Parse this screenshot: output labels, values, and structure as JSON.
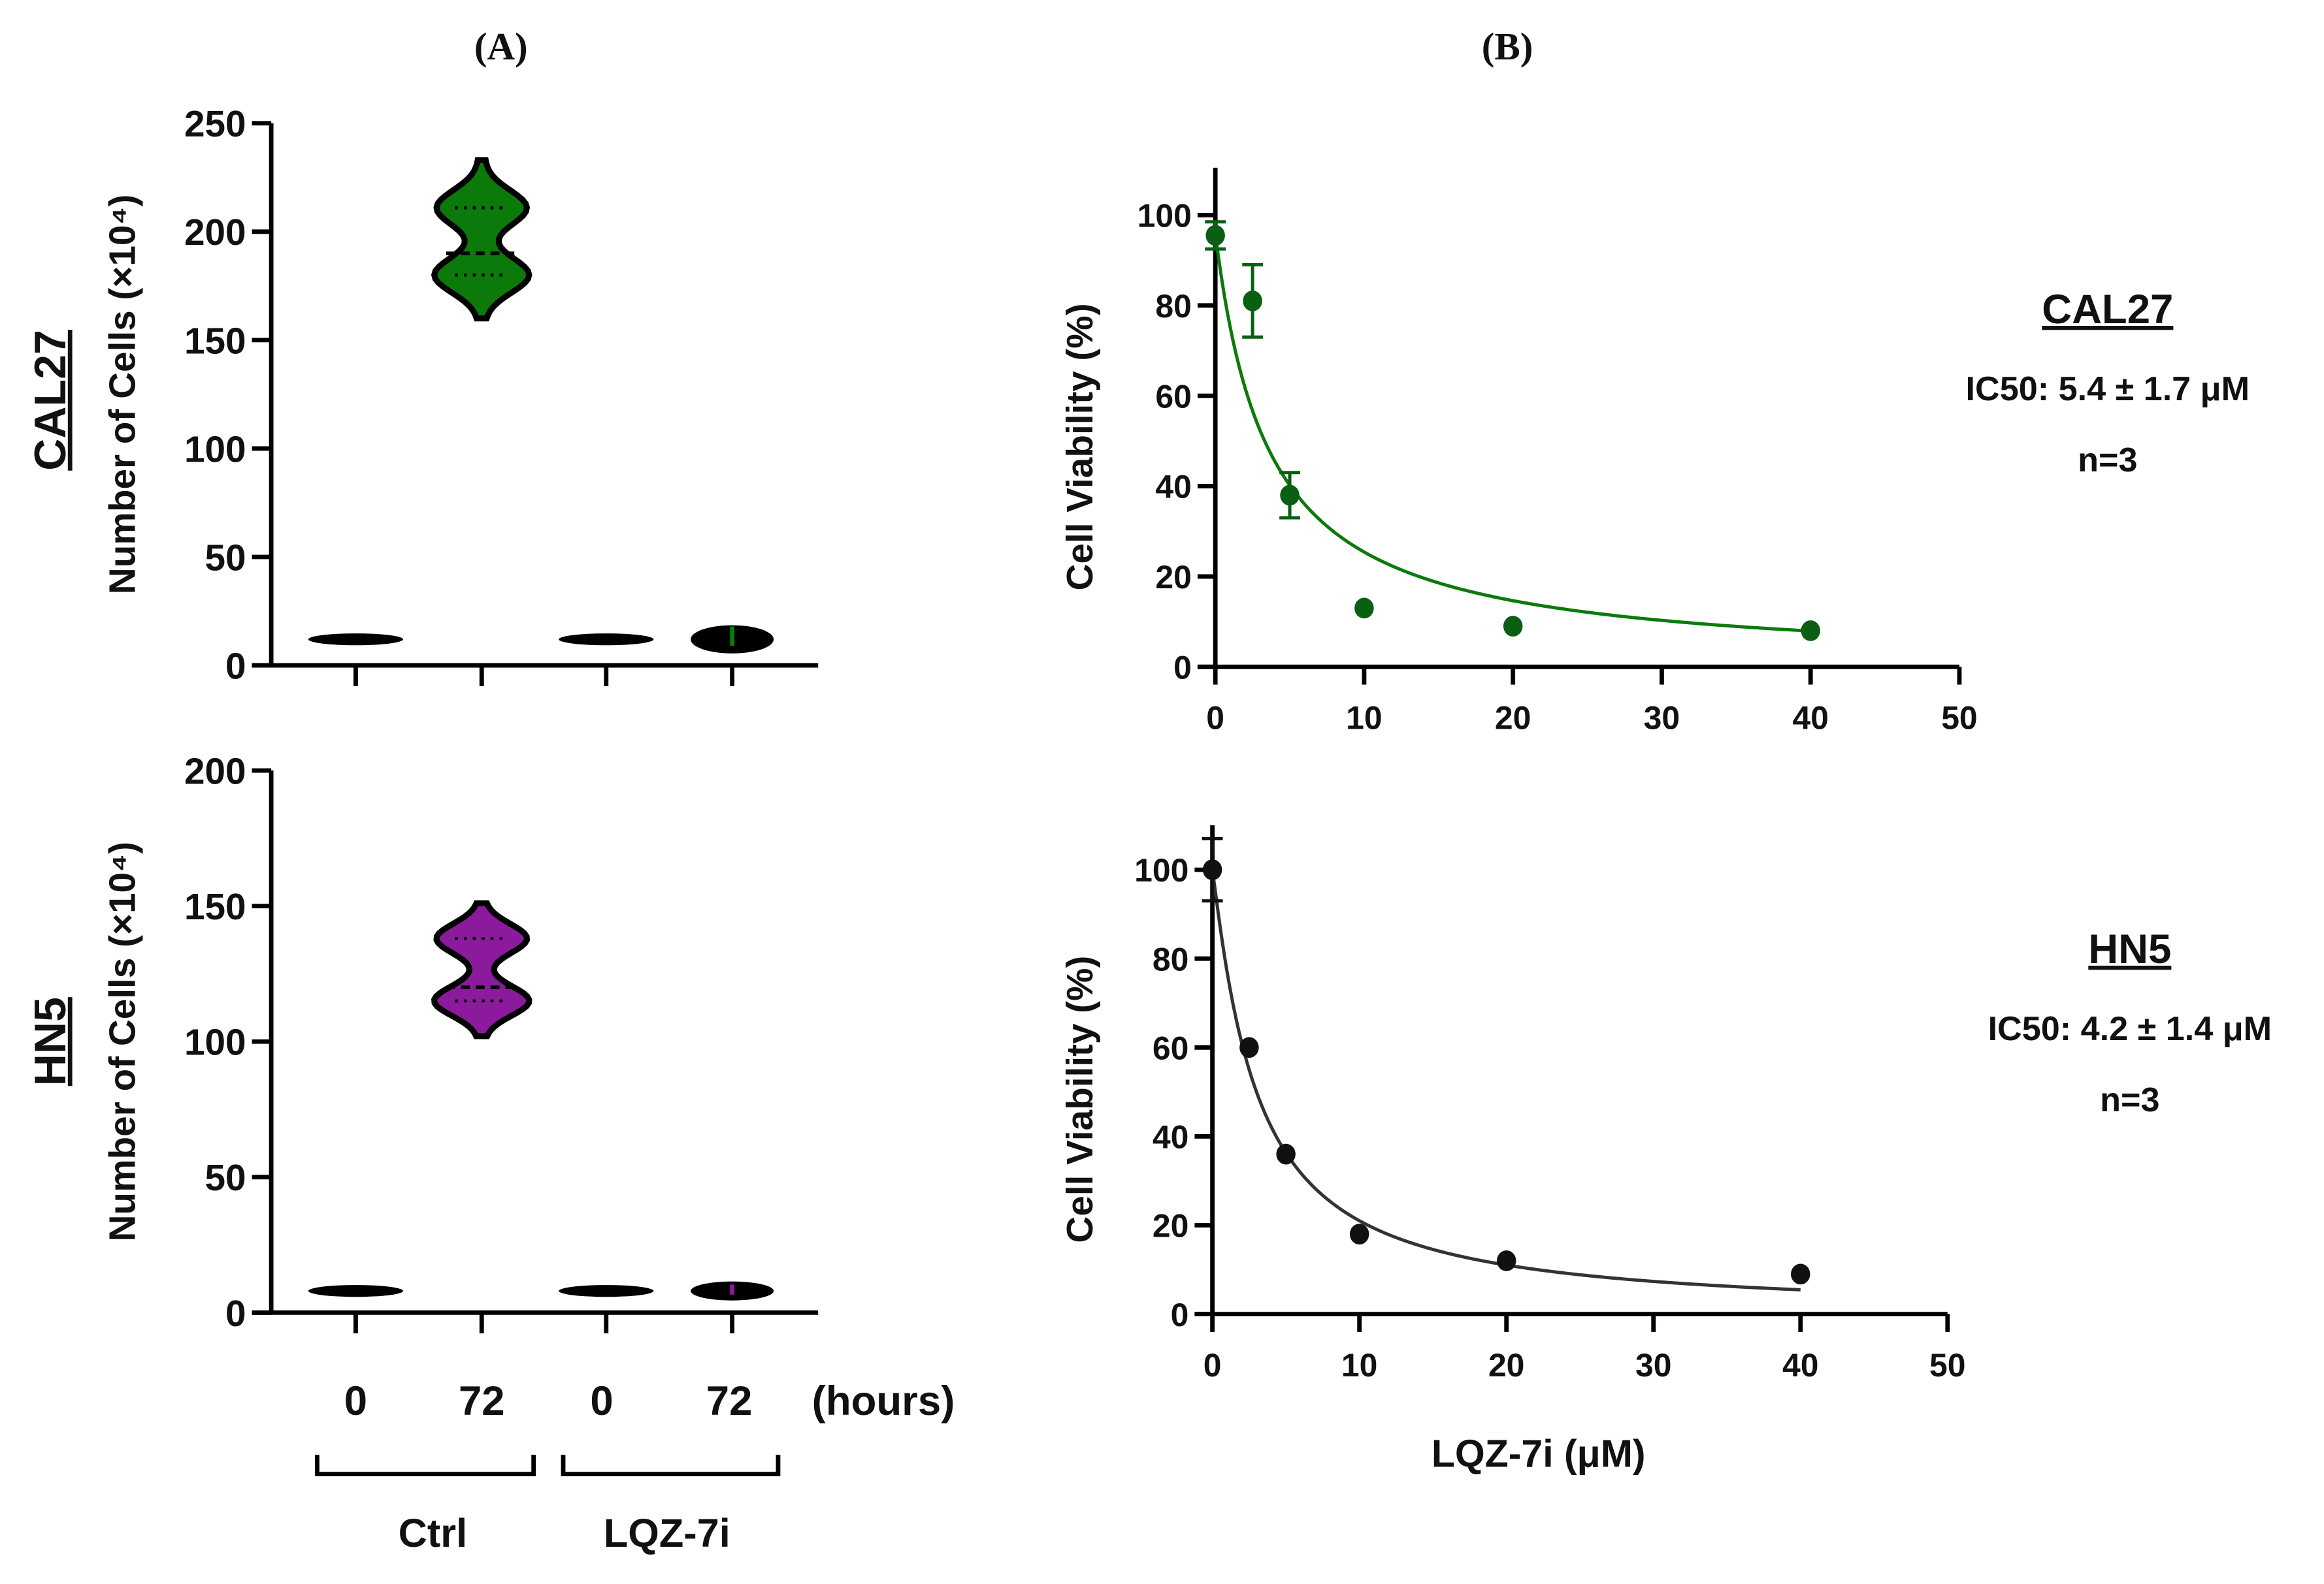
{
  "panel_labels": {
    "a": "(A)",
    "b": "(B)"
  },
  "colors": {
    "cal27": "#0b7a0b",
    "hn5": "#8c1a9c",
    "dark_green": "#0a5f12",
    "axis": "#000000"
  },
  "chart_data": [
    {
      "type": "violin",
      "id": "cal27-count",
      "row_label": "CAL27",
      "ylabel": "Number of Cells (×10⁴)",
      "ylim": [
        0,
        250
      ],
      "yticks": [
        0,
        50,
        100,
        150,
        200,
        250
      ],
      "groups": [
        {
          "group": "Ctrl",
          "time": "0",
          "min": 11,
          "max": 13,
          "median": 12
        },
        {
          "group": "Ctrl",
          "time": "72",
          "min": 160,
          "max": 233,
          "median": 190,
          "q1": 180,
          "q3": 211
        },
        {
          "group": "LQZ-7i",
          "time": "0",
          "min": 11,
          "max": 13,
          "median": 12
        },
        {
          "group": "LQZ-7i",
          "time": "72",
          "min": 7,
          "max": 20,
          "median": 12
        }
      ]
    },
    {
      "type": "violin",
      "id": "hn5-count",
      "row_label": "HN5",
      "ylabel": "Number of Cells (×10⁴)",
      "ylim": [
        0,
        200
      ],
      "yticks": [
        0,
        50,
        100,
        150,
        200
      ],
      "groups": [
        {
          "group": "Ctrl",
          "time": "0",
          "min": 7,
          "max": 9,
          "median": 8
        },
        {
          "group": "Ctrl",
          "time": "72",
          "min": 102,
          "max": 151,
          "median": 120,
          "q1": 115,
          "q3": 138
        },
        {
          "group": "LQZ-7i",
          "time": "0",
          "min": 7,
          "max": 9,
          "median": 8
        },
        {
          "group": "LQZ-7i",
          "time": "72",
          "min": 5,
          "max": 12,
          "median": 8
        }
      ]
    },
    {
      "type": "scatter",
      "id": "cal27-viability",
      "ylabel": "Cell Viability (%)",
      "xlim": [
        0,
        50
      ],
      "ylim": [
        0,
        110
      ],
      "xticks": [
        0,
        10,
        20,
        30,
        40,
        50
      ],
      "yticks": [
        0,
        20,
        40,
        60,
        80,
        100
      ],
      "points": [
        {
          "x": 0,
          "y": 95.5,
          "err": 3
        },
        {
          "x": 2.5,
          "y": 81,
          "err": 8
        },
        {
          "x": 5,
          "y": 38,
          "err": 5
        },
        {
          "x": 10,
          "y": 13,
          "err": 0
        },
        {
          "x": 20,
          "y": 9,
          "err": 0
        },
        {
          "x": 40,
          "y": 8,
          "err": 0
        }
      ],
      "fit": {
        "top": 96,
        "ec": 3.6,
        "hill": 1.0
      },
      "annotation": {
        "title": "CAL27",
        "ic50": "IC50: 5.4 ± 1.7 μM",
        "n": "n=3"
      }
    },
    {
      "type": "scatter",
      "id": "hn5-viability",
      "ylabel": "Cell Viability (%)",
      "xlabel": "LQZ-7i (μM)",
      "xlim": [
        0,
        50
      ],
      "ylim": [
        0,
        110
      ],
      "xticks": [
        0,
        10,
        20,
        30,
        40,
        50
      ],
      "yticks": [
        0,
        20,
        40,
        60,
        80,
        100
      ],
      "points": [
        {
          "x": 0,
          "y": 100,
          "err": 7
        },
        {
          "x": 2.5,
          "y": 60,
          "err": 0
        },
        {
          "x": 5,
          "y": 36,
          "err": 0
        },
        {
          "x": 10,
          "y": 18,
          "err": 0
        },
        {
          "x": 20,
          "y": 12,
          "err": 0
        },
        {
          "x": 40,
          "y": 9,
          "err": 0
        }
      ],
      "fit": {
        "top": 100,
        "ec": 3.0,
        "hill": 1.1
      },
      "annotation": {
        "title": "HN5",
        "ic50": "IC50: 4.2 ± 1.4 μM",
        "n": "n=3"
      }
    }
  ],
  "x_categories": {
    "times": [
      "0",
      "72",
      "0",
      "72"
    ],
    "unit": "(hours)",
    "groups": [
      "Ctrl",
      "LQZ-7i"
    ]
  }
}
